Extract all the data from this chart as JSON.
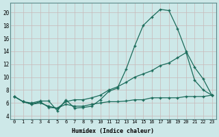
{
  "xlabel": "Humidex (Indice chaleur)",
  "ylabel": "",
  "bg_color": "#cde8e8",
  "grid_color": "#aacccc",
  "line_color": "#1a6b5a",
  "xlim": [
    -0.5,
    23.5
  ],
  "ylim": [
    3.5,
    21.5
  ],
  "xticks": [
    0,
    1,
    2,
    3,
    4,
    5,
    6,
    7,
    8,
    9,
    10,
    11,
    12,
    13,
    14,
    15,
    16,
    17,
    18,
    19,
    20,
    21,
    22,
    23
  ],
  "yticks": [
    4,
    6,
    8,
    10,
    12,
    14,
    16,
    18,
    20
  ],
  "line1_x": [
    0,
    1,
    2,
    3,
    4,
    5,
    6,
    7,
    8,
    9,
    10,
    11,
    12,
    13,
    14,
    15,
    16,
    17,
    18,
    19,
    20,
    21,
    22,
    23
  ],
  "line1_y": [
    7.0,
    6.2,
    6.0,
    6.3,
    6.3,
    4.8,
    6.5,
    5.2,
    5.3,
    5.5,
    6.5,
    7.8,
    8.3,
    11.2,
    14.8,
    18.0,
    19.3,
    20.5,
    20.3,
    17.5,
    14.0,
    11.5,
    9.7,
    7.2
  ],
  "line2_x": [
    0,
    1,
    2,
    3,
    4,
    5,
    6,
    7,
    8,
    9,
    10,
    11,
    12,
    13,
    14,
    15,
    16,
    17,
    18,
    19,
    20,
    21,
    22,
    23
  ],
  "line2_y": [
    7.0,
    6.2,
    5.8,
    6.0,
    5.5,
    5.2,
    6.2,
    6.5,
    6.5,
    6.8,
    7.2,
    8.0,
    8.5,
    9.2,
    10.0,
    10.5,
    11.0,
    11.8,
    12.2,
    13.0,
    13.8,
    9.5,
    8.0,
    7.2
  ],
  "line3_x": [
    0,
    1,
    2,
    3,
    4,
    5,
    6,
    7,
    8,
    9,
    10,
    11,
    12,
    13,
    14,
    15,
    16,
    17,
    18,
    19,
    20,
    21,
    22,
    23
  ],
  "line3_y": [
    7.0,
    6.2,
    5.8,
    6.2,
    5.3,
    5.2,
    5.8,
    5.5,
    5.5,
    5.8,
    6.0,
    6.2,
    6.2,
    6.3,
    6.5,
    6.5,
    6.8,
    6.8,
    6.8,
    6.8,
    7.0,
    7.0,
    7.0,
    7.2
  ]
}
